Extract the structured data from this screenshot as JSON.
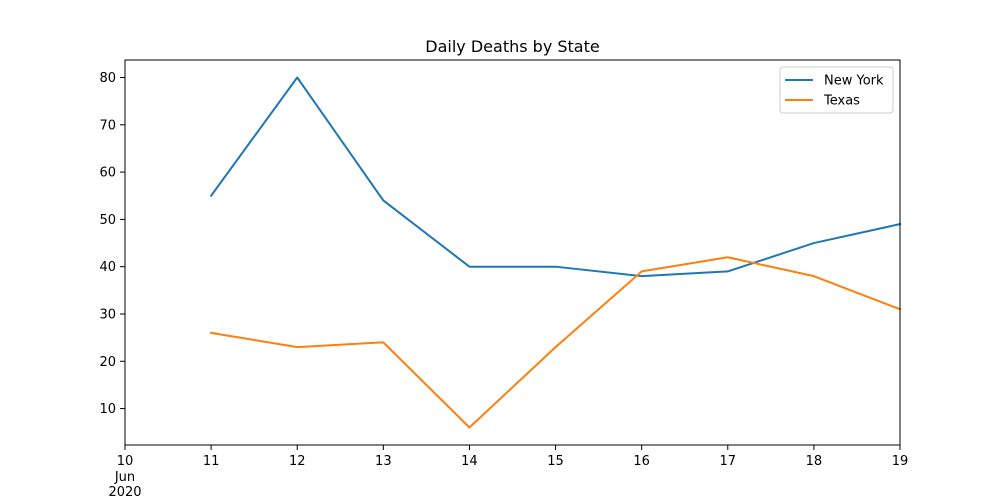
{
  "chart_data": {
    "type": "line",
    "title": "Daily Deaths by State",
    "xlabel": "",
    "ylabel": "",
    "x": [
      "2020-06-11",
      "2020-06-12",
      "2020-06-13",
      "2020-06-14",
      "2020-06-15",
      "2020-06-16",
      "2020-06-17",
      "2020-06-18",
      "2020-06-19"
    ],
    "xlim": [
      "2020-06-10",
      "2020-06-19"
    ],
    "x_ticks": [
      {
        "date": "2020-06-10",
        "label": "10",
        "sublabels": [
          "Jun",
          "2020"
        ]
      },
      {
        "date": "2020-06-11",
        "label": "11",
        "sublabels": []
      },
      {
        "date": "2020-06-12",
        "label": "12",
        "sublabels": []
      },
      {
        "date": "2020-06-13",
        "label": "13",
        "sublabels": []
      },
      {
        "date": "2020-06-14",
        "label": "14",
        "sublabels": []
      },
      {
        "date": "2020-06-15",
        "label": "15",
        "sublabels": []
      },
      {
        "date": "2020-06-16",
        "label": "16",
        "sublabels": []
      },
      {
        "date": "2020-06-17",
        "label": "17",
        "sublabels": []
      },
      {
        "date": "2020-06-18",
        "label": "18",
        "sublabels": []
      },
      {
        "date": "2020-06-19",
        "label": "19",
        "sublabels": []
      }
    ],
    "ylim": [
      2.3,
      83.7
    ],
    "y_ticks": [
      10,
      20,
      30,
      40,
      50,
      60,
      70,
      80
    ],
    "grid": false,
    "legend_position": "top-right",
    "series": [
      {
        "name": "New York",
        "color": "#1f77b4",
        "values": [
          55,
          80,
          54,
          40,
          40,
          38,
          39,
          45,
          49
        ]
      },
      {
        "name": "Texas",
        "color": "#ff7f0e",
        "values": [
          26,
          23,
          24,
          6,
          23,
          39,
          42,
          38,
          31
        ]
      }
    ]
  }
}
